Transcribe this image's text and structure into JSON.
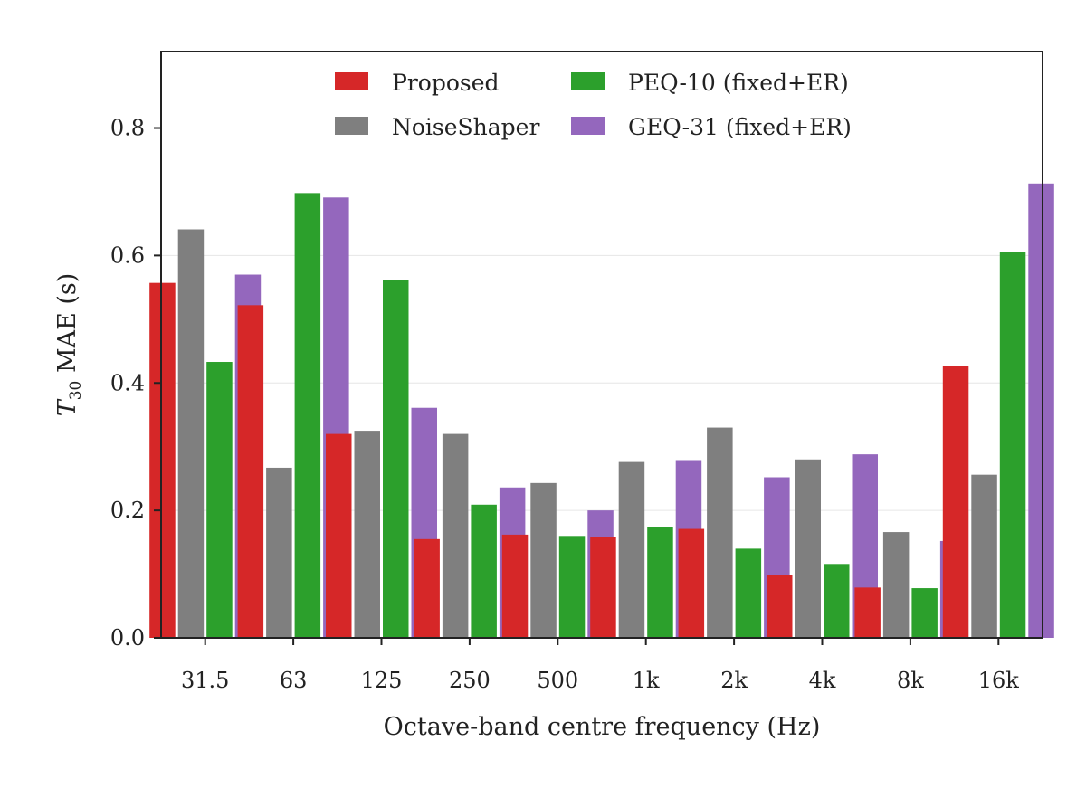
{
  "chart_data": {
    "type": "bar",
    "categories": [
      "31.5",
      "63",
      "125",
      "250",
      "500",
      "1k",
      "2k",
      "4k",
      "8k",
      "16k"
    ],
    "series": [
      {
        "name": "Proposed",
        "color": "#d62728",
        "values": [
          0.557,
          0.522,
          0.32,
          0.155,
          0.162,
          0.159,
          0.171,
          0.099,
          0.079,
          0.427
        ]
      },
      {
        "name": "NoiseShaper",
        "color": "#7f7f7f",
        "values": [
          0.641,
          0.267,
          0.325,
          0.32,
          0.243,
          0.276,
          0.33,
          0.28,
          0.166,
          0.256
        ]
      },
      {
        "name": "PEQ-10 (fixed+ER)",
        "color": "#2ca02c",
        "values": [
          0.433,
          0.698,
          0.561,
          0.209,
          0.16,
          0.174,
          0.14,
          0.116,
          0.078,
          0.606
        ]
      },
      {
        "name": "GEQ-31 (fixed+ER)",
        "color": "#9467bd",
        "values": [
          0.57,
          0.691,
          0.361,
          0.236,
          0.2,
          0.279,
          0.252,
          0.288,
          0.152,
          0.713
        ]
      }
    ],
    "xlabel": "Octave-band centre frequency (Hz)",
    "ylabel_main": "T",
    "ylabel_sub": "30",
    "ylabel_rest": " MAE (s)",
    "ylim": [
      0,
      0.92
    ],
    "yticks": [
      "0.0",
      "0.2",
      "0.4",
      "0.6",
      "0.8"
    ],
    "ytick_values": [
      0,
      0.2,
      0.4,
      0.6,
      0.8
    ],
    "grid": true,
    "legend_position": "top-center"
  }
}
